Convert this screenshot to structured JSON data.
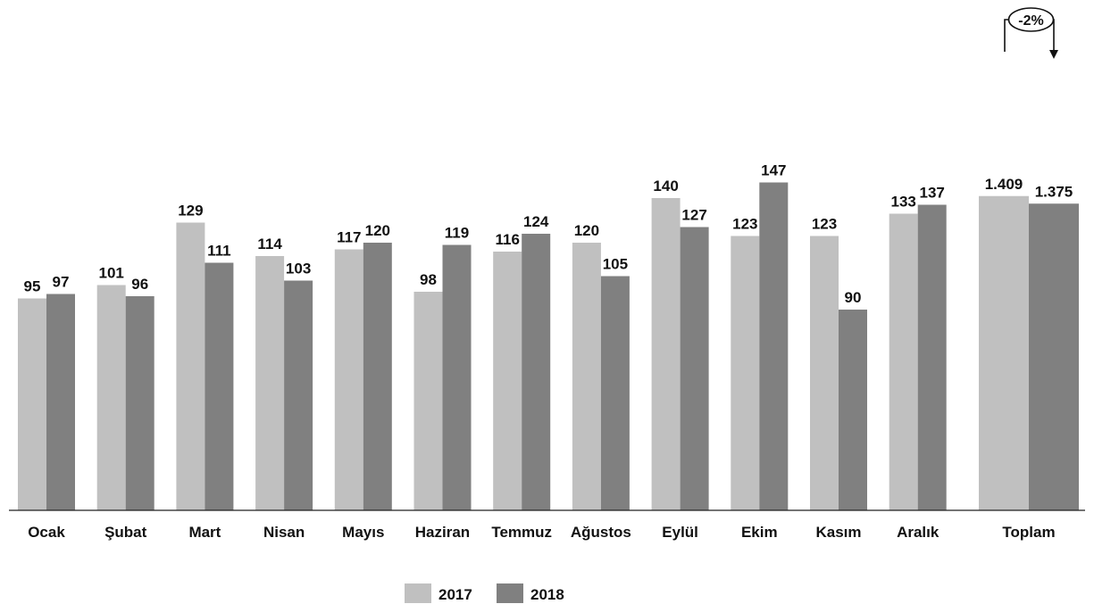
{
  "chart_data": {
    "type": "bar",
    "categories": [
      "Ocak",
      "Şubat",
      "Mart",
      "Nisan",
      "Mayıs",
      "Haziran",
      "Temmuz",
      "Ağustos",
      "Eylül",
      "Ekim",
      "Kasım",
      "Aralık"
    ],
    "series": [
      {
        "name": "2017",
        "color": "#c0c0c0",
        "values": [
          95,
          101,
          129,
          114,
          117,
          98,
          116,
          120,
          140,
          123,
          123,
          133
        ]
      },
      {
        "name": "2018",
        "color": "#808080",
        "values": [
          97,
          96,
          111,
          103,
          120,
          119,
          124,
          105,
          127,
          147,
          90,
          137
        ]
      }
    ],
    "total": {
      "category": "Toplam",
      "values": [
        1409,
        1375
      ],
      "labels": [
        "1.409",
        "1.375"
      ],
      "change_label": "-2%"
    },
    "title": "",
    "xlabel": "",
    "ylabel": "",
    "grid": false,
    "legend_position": "bottom-center"
  }
}
